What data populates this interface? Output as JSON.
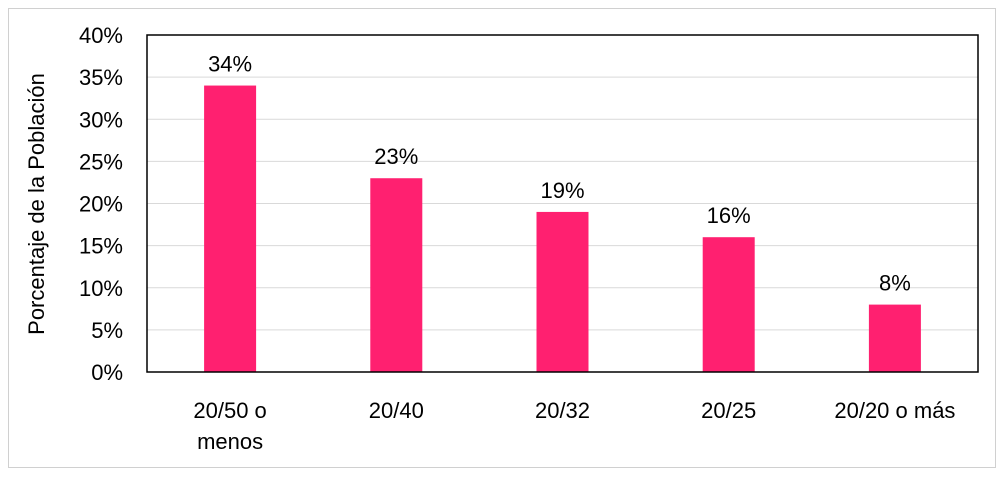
{
  "chart_data": {
    "type": "bar",
    "ylabel": "Porcentaje de la Población",
    "xlabel": "",
    "title": "",
    "categories": [
      [
        "20/50 o",
        "menos"
      ],
      [
        "20/40"
      ],
      [
        "20/32"
      ],
      [
        "20/25"
      ],
      [
        "20/20 o más"
      ]
    ],
    "values": [
      34,
      23,
      19,
      16,
      8
    ],
    "data_labels": [
      "34%",
      "23%",
      "19%",
      "16%",
      "8%"
    ],
    "y_ticks": [
      "0%",
      "5%",
      "10%",
      "15%",
      "20%",
      "25%",
      "30%",
      "35%",
      "40%"
    ],
    "ylim": [
      0,
      40
    ],
    "ytick_step": 5,
    "grid": true,
    "bar_color": "#ff2070",
    "grid_color": "#d9d9d9",
    "axis_color": "#000000"
  }
}
